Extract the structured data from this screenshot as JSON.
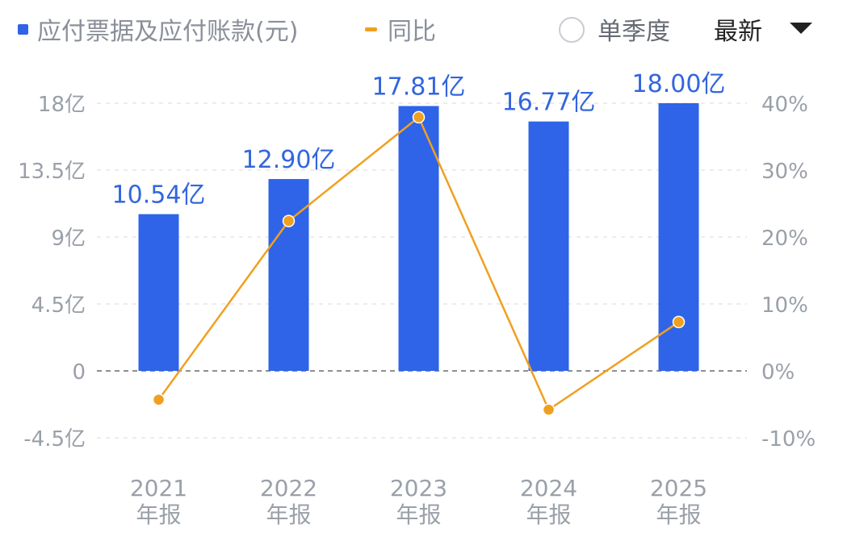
{
  "legend": {
    "bar_label": "应付票据及应付账款(元)",
    "line_label": "同比"
  },
  "controls": {
    "single_quarter_label": "单季度",
    "single_quarter_checked": false,
    "period_select_value": "最新"
  },
  "colors": {
    "bar": "#2f64e8",
    "line": "#f0a020",
    "value_label": "#3366dd",
    "axis_text": "#9aa0a8"
  },
  "chart_data": {
    "type": "bar",
    "categories": [
      "2021\n年报",
      "2022\n年报",
      "2023\n年报",
      "2024\n年报",
      "2025\n年报"
    ],
    "series": [
      {
        "name": "应付票据及应付账款(元)",
        "type": "bar",
        "axis": "left",
        "values": [
          10.54,
          12.9,
          17.81,
          16.77,
          18.0
        ],
        "labels": [
          "10.54亿",
          "12.90亿",
          "17.81亿",
          "16.77亿",
          "18.00亿"
        ]
      },
      {
        "name": "同比",
        "type": "line",
        "axis": "right",
        "values": [
          -4.3,
          22.4,
          37.9,
          -5.8,
          7.3
        ]
      }
    ],
    "y_left": {
      "ticks": [
        18,
        13.5,
        9,
        4.5,
        0,
        -4.5
      ],
      "tick_labels": [
        "18亿",
        "13.5亿",
        "9亿",
        "4.5亿",
        "0",
        "-4.5亿"
      ],
      "range": [
        -4.5,
        18
      ]
    },
    "y_right": {
      "ticks": [
        40,
        30,
        20,
        10,
        0,
        -10
      ],
      "tick_labels": [
        "40%",
        "30%",
        "20%",
        "10%",
        "0%",
        "-10%"
      ],
      "range": [
        -10,
        40
      ]
    },
    "grid": true,
    "legend_position": "top-left"
  }
}
